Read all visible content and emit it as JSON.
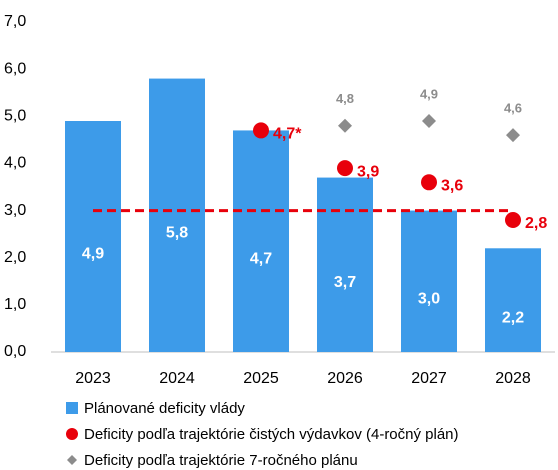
{
  "chart_data": {
    "type": "bar",
    "categories": [
      "2023",
      "2024",
      "2025",
      "2026",
      "2027",
      "2028"
    ],
    "series": [
      {
        "name": "Plánované deficity vlády",
        "type": "bar",
        "color": "#3d9be9",
        "values": [
          4.9,
          5.8,
          4.7,
          3.7,
          3.0,
          2.2
        ],
        "value_labels": [
          "4,9",
          "5,8",
          "4,7",
          "3,7",
          "3,0",
          "2,2"
        ]
      },
      {
        "name": "Deficity podľa trajektórie čistých výdavkov (4-ročný plán)",
        "type": "circle",
        "color": "#e8000b",
        "values": [
          null,
          null,
          4.7,
          3.9,
          3.6,
          2.8
        ],
        "value_labels": [
          null,
          null,
          "4,7*",
          "3,9",
          "3,6",
          "2,8"
        ]
      },
      {
        "name": "Deficity podľa trajektórie 7-ročného plánu",
        "type": "diamond",
        "color": "#8c8c8c",
        "values": [
          null,
          null,
          4.7,
          4.8,
          4.9,
          4.6
        ],
        "value_labels": [
          null,
          null,
          null,
          "4,8",
          "4,9",
          "4,6"
        ]
      }
    ],
    "reference_line": {
      "value": 3.0,
      "color": "#e8000b"
    },
    "ylim": [
      0,
      7
    ],
    "yticks": [
      {
        "value": 0,
        "label": "0,0"
      },
      {
        "value": 1,
        "label": "1,0"
      },
      {
        "value": 2,
        "label": "2,0"
      },
      {
        "value": 3,
        "label": "3,0"
      },
      {
        "value": 4,
        "label": "4,0"
      },
      {
        "value": 5,
        "label": "5,0"
      },
      {
        "value": 6,
        "label": "6,0"
      },
      {
        "value": 7,
        "label": "7,0"
      }
    ]
  }
}
